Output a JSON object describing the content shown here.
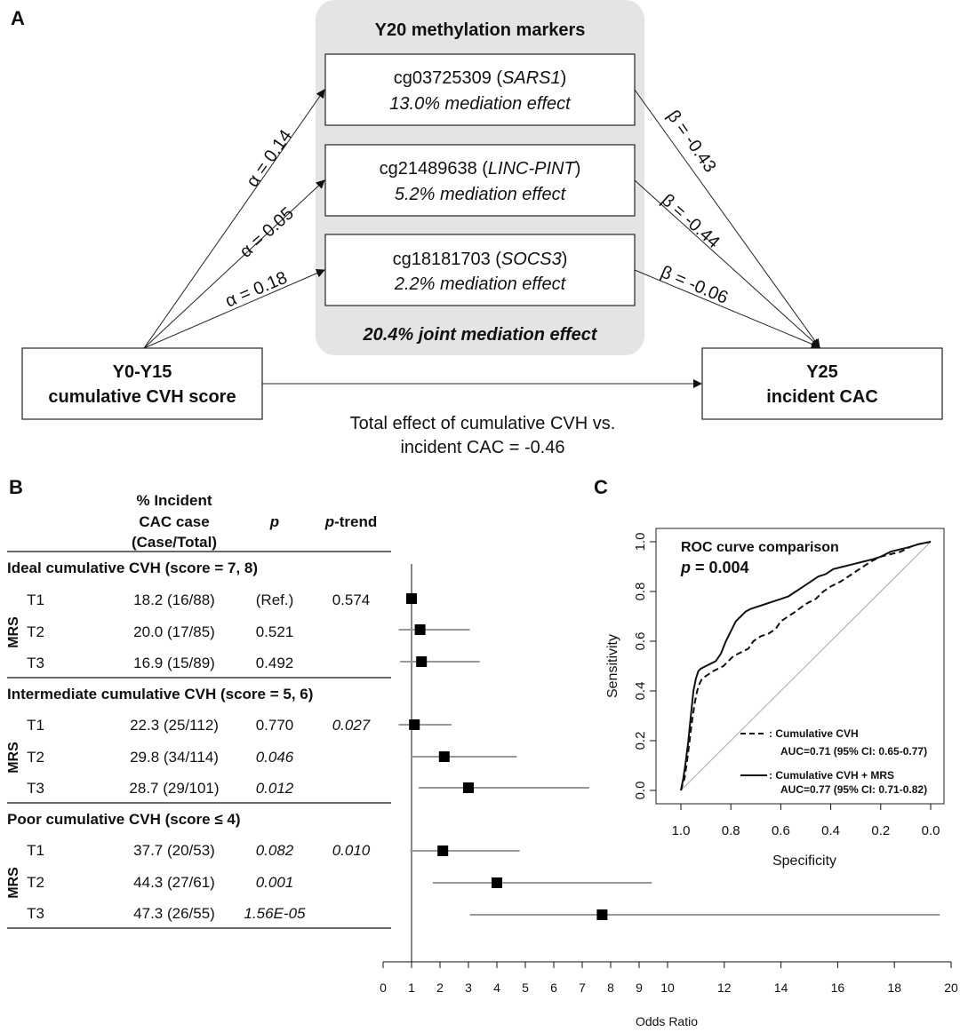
{
  "panel_a": {
    "panel_label": "A",
    "markers_title": "Y20 methylation markers",
    "markers": [
      {
        "probe": "cg03725309 (",
        "gene": "SARS1",
        "close": ")",
        "effect": "13.0% mediation effect",
        "alpha": "α = 0.14",
        "beta": "β = -0.43"
      },
      {
        "probe": "cg21489638 (",
        "gene": "LINC-PINT",
        "close": ")",
        "effect": "5.2% mediation effect",
        "alpha": "α = 0.05",
        "beta": "β = -0.44"
      },
      {
        "probe": "cg18181703 (",
        "gene": "SOCS3",
        "close": ")",
        "effect": "2.2% mediation effect",
        "alpha": "α = 0.18",
        "beta": "β = -0.06"
      }
    ],
    "joint_effect": "20.4% joint mediation effect",
    "exposure": {
      "line1": "Y0-Y15",
      "line2": "cumulative CVH score"
    },
    "outcome": {
      "line1": "Y25",
      "line2": "incident CAC"
    },
    "total_effect": {
      "line1": "Total effect of cumulative CVH vs.",
      "line2": "incident CAC = -0.46"
    }
  },
  "panel_b": {
    "panel_label": "B",
    "headers": {
      "pct_line1": "% Incident",
      "pct_line2": "CAC case",
      "pct_line3": "(Case/Total)",
      "p": "p",
      "ptrend_p": "p",
      "ptrend_rest": "-trend"
    },
    "row_group_label": "MRS",
    "groups": [
      {
        "title": "Ideal cumulative CVH (score = 7, 8)",
        "p_trend": "0.574",
        "p_trend_italic": false,
        "rows": [
          {
            "tertile": "T1",
            "pct": "18.2 (16/88)",
            "p": "(Ref.)",
            "p_italic": false
          },
          {
            "tertile": "T2",
            "pct": "20.0 (17/85)",
            "p": "0.521",
            "p_italic": false
          },
          {
            "tertile": "T3",
            "pct": "16.9 (15/89)",
            "p": "0.492",
            "p_italic": false
          }
        ]
      },
      {
        "title": "Intermediate cumulative CVH (score = 5, 6)",
        "p_trend": "0.027",
        "p_trend_italic": true,
        "rows": [
          {
            "tertile": "T1",
            "pct": "22.3 (25/112)",
            "p": "0.770",
            "p_italic": false
          },
          {
            "tertile": "T2",
            "pct": "29.8 (34/114)",
            "p": "0.046",
            "p_italic": true
          },
          {
            "tertile": "T3",
            "pct": "28.7 (29/101)",
            "p": "0.012",
            "p_italic": true
          }
        ]
      },
      {
        "title": "Poor cumulative CVH (score ≤ 4)",
        "p_trend": "0.010",
        "p_trend_italic": true,
        "rows": [
          {
            "tertile": "T1",
            "pct": "37.7 (20/53)",
            "p": "0.082",
            "p_italic": true
          },
          {
            "tertile": "T2",
            "pct": "44.3 (27/61)",
            "p": "0.001",
            "p_italic": true
          },
          {
            "tertile": "T3",
            "pct": "47.3 (26/55)",
            "p": "1.56E-05",
            "p_italic": true
          }
        ]
      }
    ]
  },
  "chart_data": [
    {
      "type": "forest",
      "xlabel": "Odds Ratio",
      "ref_line": 1,
      "ticks": [
        0,
        1,
        2,
        3,
        4,
        5,
        6,
        7,
        8,
        9,
        10,
        12,
        14,
        16,
        18,
        20
      ],
      "points": [
        {
          "label": "Ideal T1",
          "or": 1.0,
          "lo": 1.0,
          "hi": 1.0
        },
        {
          "label": "Ideal T2",
          "or": 1.3,
          "lo": 0.55,
          "hi": 3.05
        },
        {
          "label": "Ideal T3",
          "or": 1.35,
          "lo": 0.6,
          "hi": 3.4
        },
        {
          "label": "Intermediate T1",
          "or": 1.1,
          "lo": 0.55,
          "hi": 2.4
        },
        {
          "label": "Intermediate T2",
          "or": 2.15,
          "lo": 1.0,
          "hi": 4.7
        },
        {
          "label": "Intermediate T3",
          "or": 3.0,
          "lo": 1.25,
          "hi": 7.25
        },
        {
          "label": "Poor T1",
          "or": 2.1,
          "lo": 0.95,
          "hi": 4.8
        },
        {
          "label": "Poor T2",
          "or": 4.0,
          "lo": 1.75,
          "hi": 9.45
        },
        {
          "label": "Poor T3",
          "or": 7.7,
          "lo": 3.05,
          "hi": 19.6
        }
      ]
    },
    {
      "type": "line",
      "panel_label": "C",
      "title": "ROC curve comparison",
      "stat_p": "p",
      "stat_rest": " = 0.004",
      "xlabel": "Specificity",
      "ylabel": "Sensitivity",
      "xlim": [
        1.0,
        0.0
      ],
      "ylim": [
        0.0,
        1.0
      ],
      "x_ticks": [
        "1.0",
        "0.8",
        "0.6",
        "0.4",
        "0.2",
        "0.0"
      ],
      "y_ticks": [
        "0.0",
        "0.2",
        "0.4",
        "0.6",
        "0.8",
        "1.0"
      ],
      "series": [
        {
          "name": ": Cumulative CVH",
          "auc": "AUC=0.71 (95% CI: 0.65-0.77)",
          "style": "dashed",
          "x": [
            1.0,
            0.985,
            0.975,
            0.965,
            0.955,
            0.945,
            0.935,
            0.925,
            0.915,
            0.9,
            0.885,
            0.87,
            0.85,
            0.83,
            0.81,
            0.79,
            0.77,
            0.75,
            0.73,
            0.71,
            0.68,
            0.65,
            0.62,
            0.6,
            0.57,
            0.54,
            0.5,
            0.46,
            0.43,
            0.4,
            0.36,
            0.33,
            0.3,
            0.27,
            0.24,
            0.2,
            0.16,
            0.12,
            0.08,
            0.05,
            0.0
          ],
          "y": [
            0.0,
            0.05,
            0.12,
            0.2,
            0.28,
            0.35,
            0.4,
            0.43,
            0.45,
            0.46,
            0.47,
            0.48,
            0.49,
            0.5,
            0.52,
            0.54,
            0.55,
            0.56,
            0.57,
            0.6,
            0.62,
            0.63,
            0.65,
            0.68,
            0.7,
            0.72,
            0.75,
            0.77,
            0.8,
            0.82,
            0.84,
            0.86,
            0.88,
            0.9,
            0.92,
            0.94,
            0.95,
            0.96,
            0.98,
            0.99,
            1.0
          ]
        },
        {
          "name": ": Cumulative CVH + MRS",
          "auc": "AUC=0.77 (95% CI: 0.71-0.82)",
          "style": "solid",
          "x": [
            1.0,
            0.99,
            0.98,
            0.97,
            0.96,
            0.95,
            0.94,
            0.93,
            0.92,
            0.9,
            0.88,
            0.86,
            0.84,
            0.82,
            0.8,
            0.78,
            0.76,
            0.74,
            0.72,
            0.69,
            0.66,
            0.63,
            0.6,
            0.57,
            0.54,
            0.51,
            0.48,
            0.45,
            0.42,
            0.39,
            0.35,
            0.31,
            0.27,
            0.23,
            0.2,
            0.16,
            0.12,
            0.08,
            0.05,
            0.0
          ],
          "y": [
            0.0,
            0.05,
            0.12,
            0.2,
            0.3,
            0.4,
            0.45,
            0.48,
            0.49,
            0.5,
            0.51,
            0.52,
            0.55,
            0.6,
            0.64,
            0.68,
            0.7,
            0.72,
            0.73,
            0.74,
            0.75,
            0.76,
            0.77,
            0.78,
            0.8,
            0.82,
            0.84,
            0.86,
            0.87,
            0.89,
            0.9,
            0.91,
            0.92,
            0.93,
            0.94,
            0.96,
            0.97,
            0.98,
            0.99,
            1.0
          ]
        }
      ]
    }
  ]
}
